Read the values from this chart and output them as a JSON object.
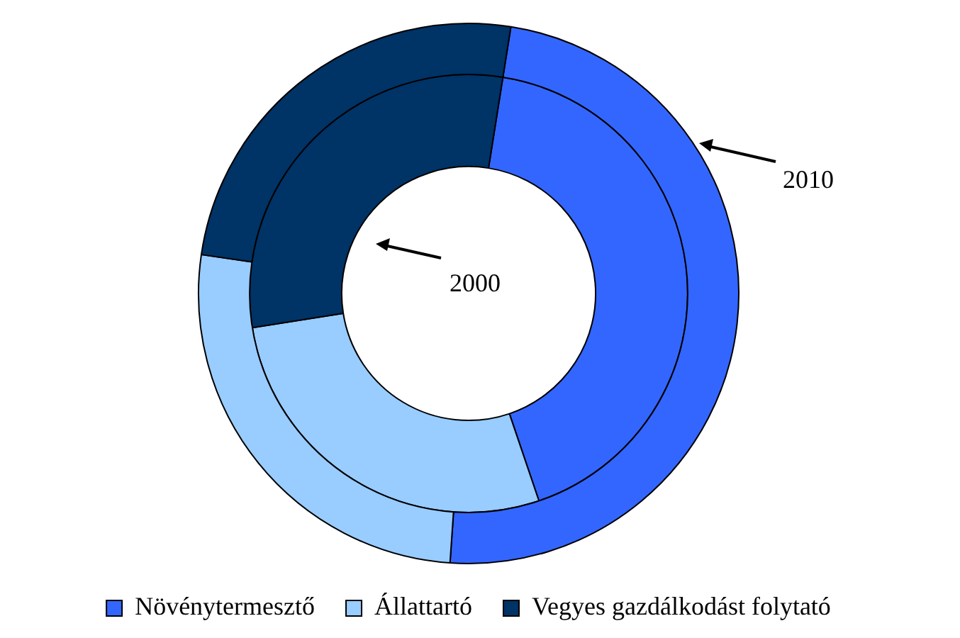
{
  "chart_data": {
    "type": "donut",
    "categories": [
      "Növénytermesztő",
      "Állattartó",
      "Vegyes gazdálkodást folytató"
    ],
    "series": [
      {
        "name": "2010",
        "values": [
          48.6,
          26.2,
          25.2
        ],
        "colors": [
          "#3366ff",
          "#99ccff",
          "#003366"
        ]
      },
      {
        "name": "2000",
        "values": [
          42.3,
          27.7,
          30.0
        ],
        "colors": [
          "#3366ff",
          "#99ccff",
          "#003366"
        ]
      }
    ],
    "legend": "bottom"
  }
}
